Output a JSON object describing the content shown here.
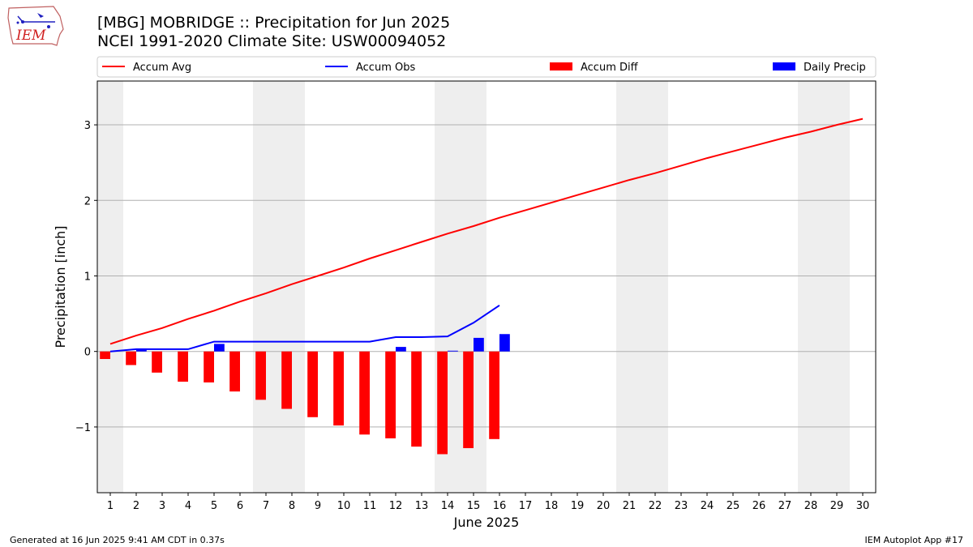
{
  "title": {
    "line1": "[MBG] MOBRIDGE :: Precipitation for Jun 2025",
    "line2": "NCEI 1991-2020 Climate Site: USW00094052"
  },
  "logo": {
    "icon": "iowa-state-logo-icon",
    "text": "IEM"
  },
  "footer": {
    "left": "Generated at 16 Jun 2025 9:41 AM CDT in 0.37s",
    "right": "IEM Autoplot App #17"
  },
  "chart_data": {
    "type": "bar",
    "xlabel": "June 2025",
    "ylabel": "Precipitation [inch]",
    "xlim": [
      0.5,
      30.5
    ],
    "ylim": [
      -1.87,
      3.58
    ],
    "yticks": [
      -1,
      0,
      1,
      2,
      3
    ],
    "ytick_labels": [
      "−1",
      "0",
      "1",
      "2",
      "3"
    ],
    "xticks": [
      1,
      2,
      3,
      4,
      5,
      6,
      7,
      8,
      9,
      10,
      11,
      12,
      13,
      14,
      15,
      16,
      17,
      18,
      19,
      20,
      21,
      22,
      23,
      24,
      25,
      26,
      27,
      28,
      29,
      30
    ],
    "grid": "y",
    "legend_position": "top",
    "weekend_shading": [
      [
        0.5,
        1.5
      ],
      [
        6.5,
        8.5
      ],
      [
        13.5,
        15.5
      ],
      [
        20.5,
        22.5
      ],
      [
        27.5,
        29.5
      ]
    ],
    "series": [
      {
        "name": "Accum Avg",
        "kind": "line",
        "color": "#ff0000",
        "x": [
          1,
          2,
          3,
          4,
          5,
          6,
          7,
          8,
          9,
          10,
          11,
          12,
          13,
          14,
          15,
          16,
          17,
          18,
          19,
          20,
          21,
          22,
          23,
          24,
          25,
          26,
          27,
          28,
          29,
          30
        ],
        "values": [
          0.1,
          0.21,
          0.31,
          0.43,
          0.54,
          0.66,
          0.77,
          0.89,
          1.0,
          1.11,
          1.23,
          1.34,
          1.45,
          1.56,
          1.66,
          1.77,
          1.87,
          1.97,
          2.07,
          2.17,
          2.27,
          2.36,
          2.46,
          2.56,
          2.65,
          2.74,
          2.83,
          2.91,
          3.0,
          3.08
        ]
      },
      {
        "name": "Accum Obs",
        "kind": "line",
        "color": "#0000ff",
        "x": [
          1,
          2,
          3,
          4,
          5,
          6,
          7,
          8,
          9,
          10,
          11,
          12,
          13,
          14,
          15,
          16
        ],
        "values": [
          0.0,
          0.03,
          0.03,
          0.03,
          0.13,
          0.13,
          0.13,
          0.13,
          0.13,
          0.13,
          0.13,
          0.19,
          0.19,
          0.2,
          0.38,
          0.61
        ]
      },
      {
        "name": "Accum Diff",
        "kind": "bar",
        "color": "#ff0000",
        "x": [
          1,
          2,
          3,
          4,
          5,
          6,
          7,
          8,
          9,
          10,
          11,
          12,
          13,
          14,
          15,
          16
        ],
        "values": [
          -0.1,
          -0.18,
          -0.28,
          -0.4,
          -0.41,
          -0.53,
          -0.64,
          -0.76,
          -0.87,
          -0.98,
          -1.1,
          -1.15,
          -1.26,
          -1.36,
          -1.28,
          -1.16
        ]
      },
      {
        "name": "Daily Precip",
        "kind": "bar",
        "color": "#0000ff",
        "x": [
          1,
          2,
          3,
          4,
          5,
          6,
          7,
          8,
          9,
          10,
          11,
          12,
          13,
          14,
          15,
          16
        ],
        "values": [
          0.0,
          0.03,
          0.0,
          0.0,
          0.1,
          0.0,
          0.0,
          0.0,
          0.0,
          0.0,
          0.0,
          0.06,
          0.0,
          0.01,
          0.18,
          0.23
        ]
      }
    ]
  }
}
